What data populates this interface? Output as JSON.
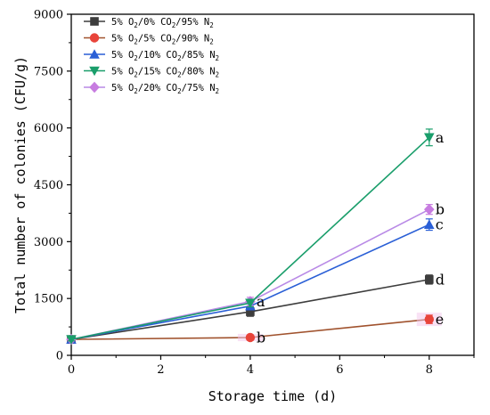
{
  "chart_data": {
    "type": "line",
    "xlabel": "Storage time (d)",
    "ylabel": "Total number of colonies (CFU/g)",
    "xlim": [
      0,
      9
    ],
    "ylim": [
      0,
      9000
    ],
    "xticks": [
      "0",
      "2",
      "4",
      "6",
      "8"
    ],
    "yticks": [
      "0",
      "1500",
      "3000",
      "4500",
      "6000",
      "7500",
      "9000"
    ],
    "legend_position": "top-left",
    "x": [
      0,
      4,
      8
    ],
    "series": [
      {
        "name": "5% O2/0% CO2/95% N2",
        "legend": {
          "a": "5% O",
          "b": "2",
          "c": "/0% CO",
          "d": "2",
          "e": "/95% N",
          "f": "2"
        },
        "color": "#3d3d3d",
        "marker": "square",
        "values": [
          420,
          1150,
          2000
        ],
        "errors": [
          40,
          120,
          120
        ],
        "labels": [
          "",
          "",
          "d"
        ]
      },
      {
        "name": "5% O2/5% CO2/90% N2",
        "legend": {
          "a": "5% O",
          "b": "2",
          "c": "/5% CO",
          "d": "2",
          "e": "/90% N",
          "f": "2"
        },
        "color": "#e8443a",
        "line_color": "#a0522d",
        "marker": "circle",
        "values": [
          420,
          470,
          950
        ],
        "errors": [
          40,
          60,
          110
        ],
        "labels": [
          "",
          "b",
          "e"
        ]
      },
      {
        "name": "5% O2/10% CO2/85% N2",
        "legend": {
          "a": "5% O",
          "b": "2",
          "c": "/10% CO",
          "d": "2",
          "e": "/85% N",
          "f": "2"
        },
        "color": "#2a5fd6",
        "marker": "triangle-up",
        "values": [
          420,
          1300,
          3450
        ],
        "errors": [
          40,
          100,
          150
        ],
        "labels": [
          "",
          "",
          "c"
        ]
      },
      {
        "name": "5% O2/15% CO2/80% N2",
        "legend": {
          "a": "5% O",
          "b": "2",
          "c": "/15% CO",
          "d": "2",
          "e": "/80% N",
          "f": "2"
        },
        "color": "#1a9e6b",
        "marker": "triangle-down",
        "values": [
          420,
          1380,
          5750
        ],
        "errors": [
          40,
          100,
          220
        ],
        "labels": [
          "",
          "",
          "a"
        ]
      },
      {
        "name": "5% O2/20% CO2/75% N2",
        "legend": {
          "a": "5% O",
          "b": "2",
          "c": "/20% CO",
          "d": "2",
          "e": "/75% N",
          "f": "2"
        },
        "color": "#c77ce0",
        "line_color": "#b98ae6",
        "marker": "diamond",
        "values": [
          420,
          1420,
          3850
        ],
        "errors": [
          40,
          110,
          130
        ],
        "labels": [
          "",
          "a",
          "b"
        ]
      }
    ]
  }
}
